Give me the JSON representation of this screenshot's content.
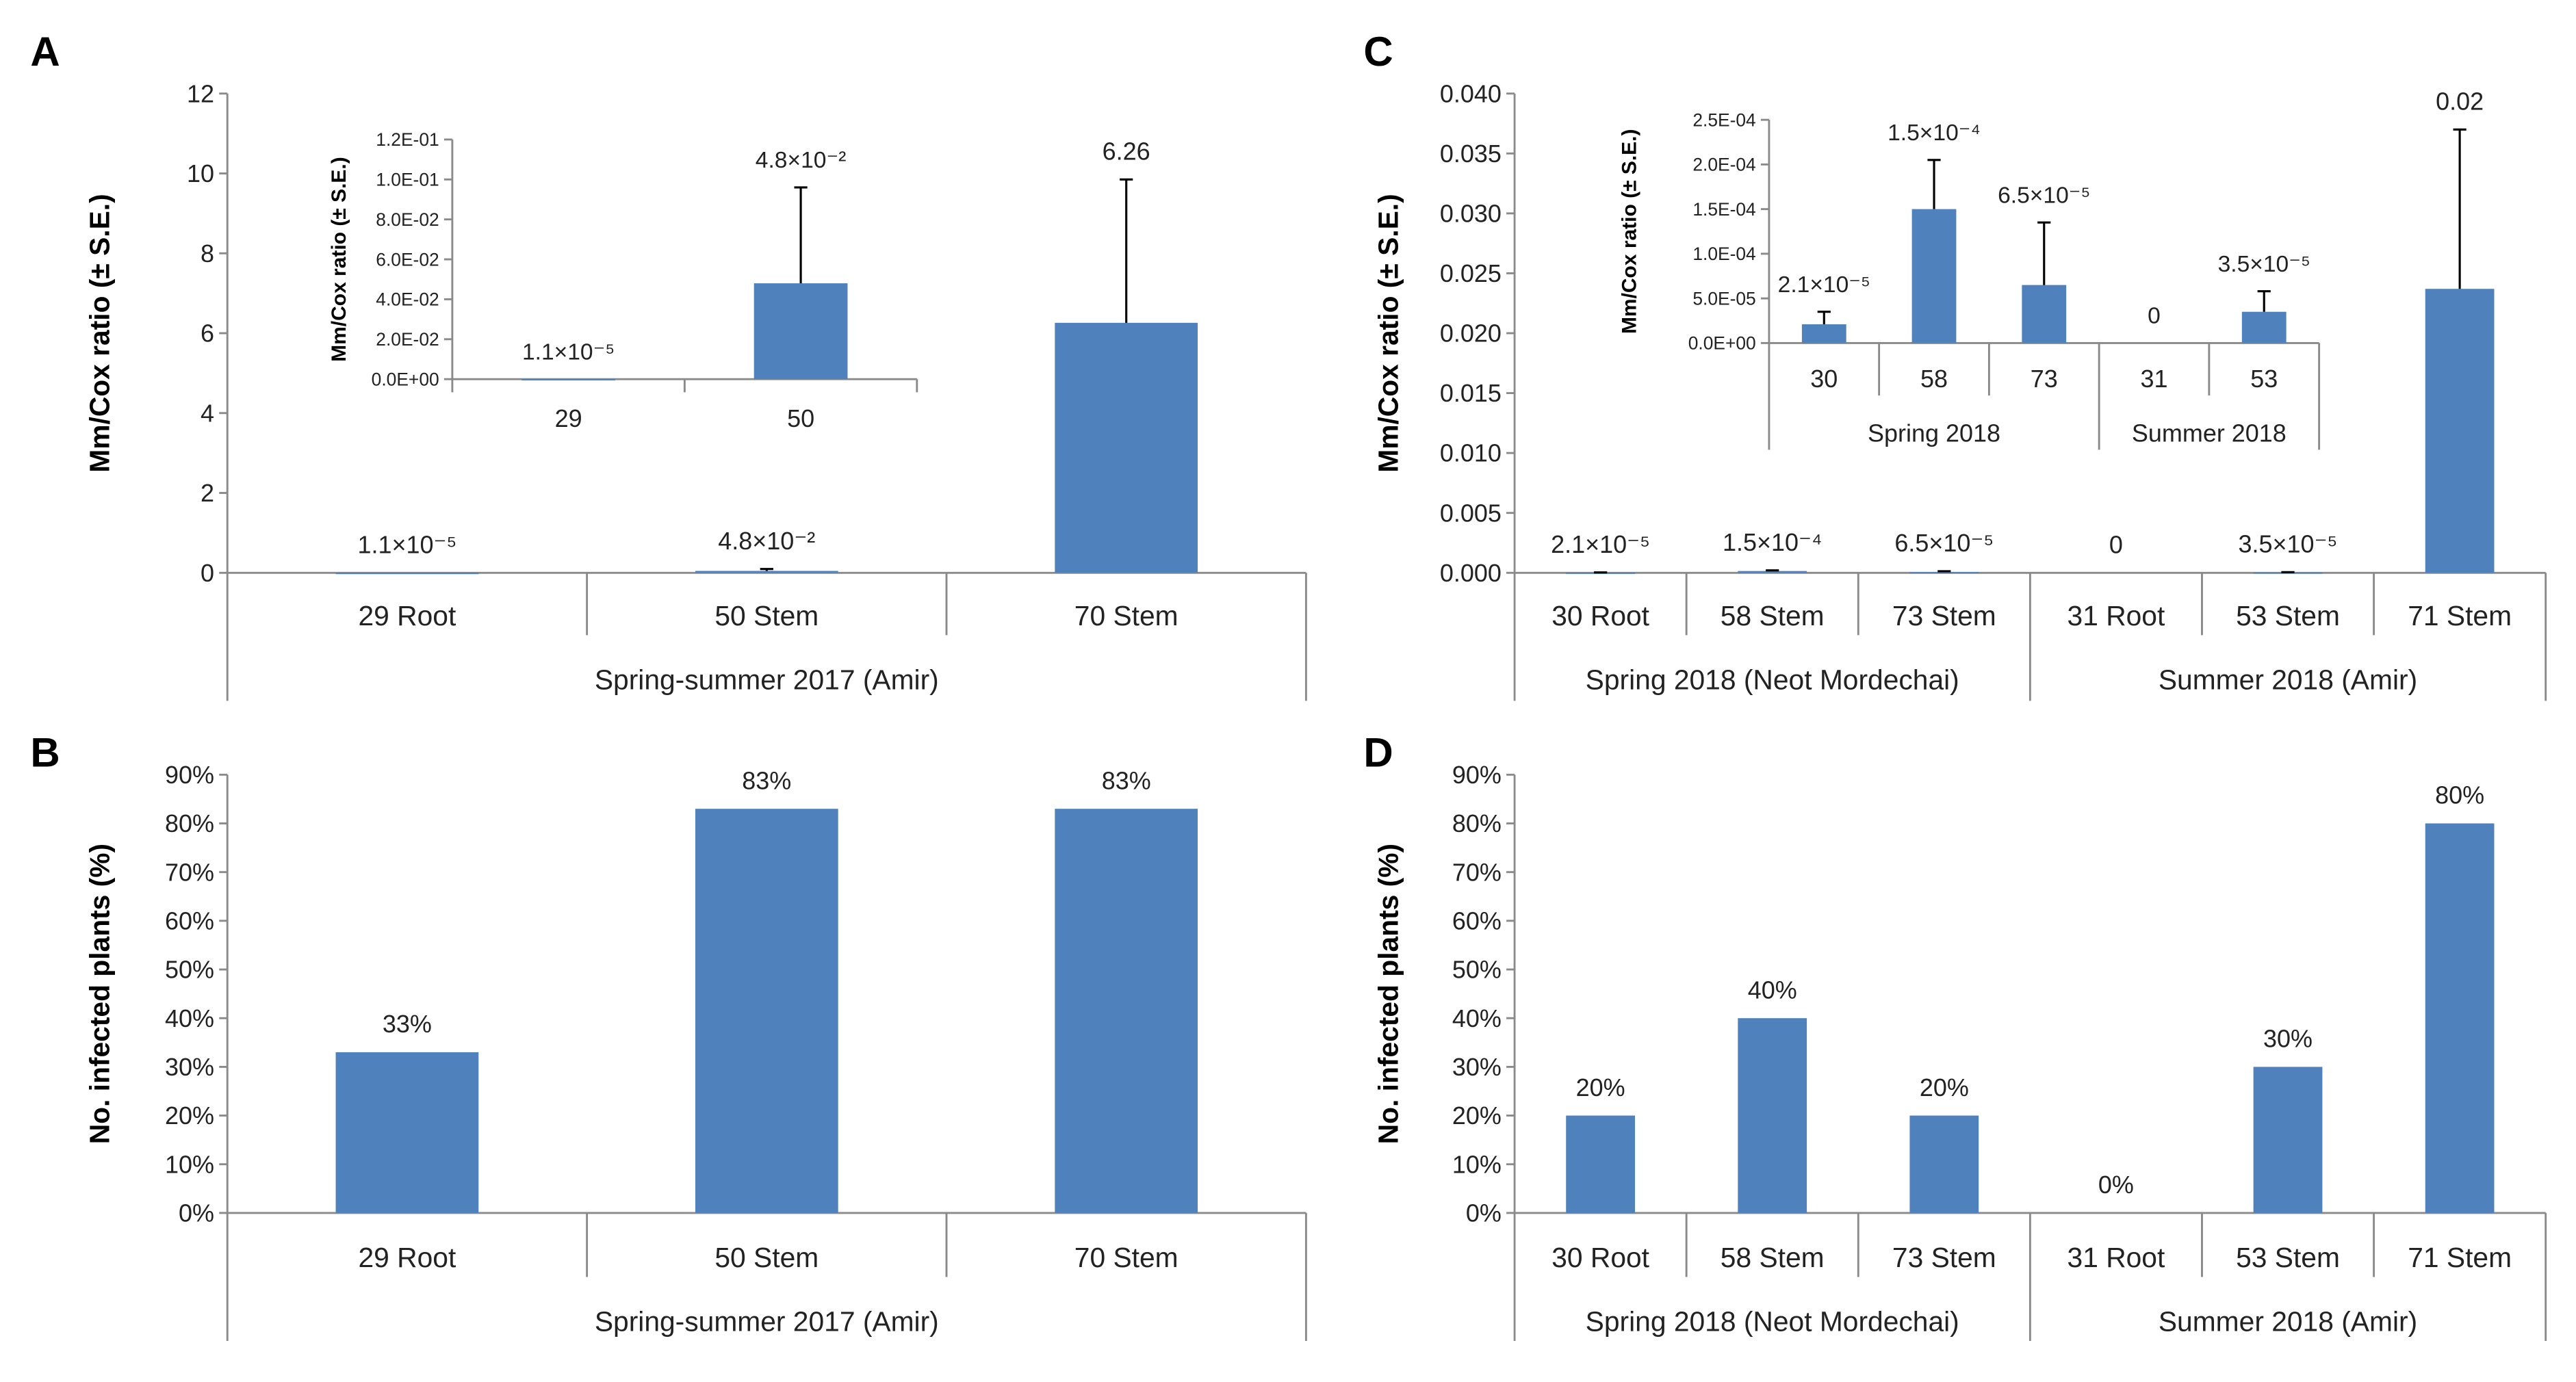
{
  "panels": {
    "A": "A",
    "B": "B",
    "C": "C",
    "D": "D"
  },
  "colors": {
    "bar": "#4F81BD",
    "axis": "#8A8A8A",
    "error_bar": "#000000"
  },
  "chart_data": [
    {
      "id": "A",
      "type": "bar",
      "title": "",
      "ylabel": "Mm/Cox ratio (± S.E.)",
      "xlabel": "",
      "ylim": [
        0,
        12
      ],
      "ytick_values": [
        0,
        2,
        4,
        6,
        8,
        10,
        12
      ],
      "ytick_labels": [
        "0",
        "2",
        "4",
        "6",
        "8",
        "10",
        "12"
      ],
      "categories": [
        "29 Root",
        "50 Stem",
        "70 Stem"
      ],
      "groups": [
        {
          "label": "Spring-summer 2017 (Amir)",
          "span": 3
        }
      ],
      "values": [
        1.1e-05,
        0.048,
        6.26
      ],
      "error_upper": [
        null,
        0.096,
        9.85
      ],
      "data_labels": [
        "1.1×10⁻⁵",
        "4.8×10⁻²",
        "6.26"
      ],
      "grid": false,
      "legend": "none"
    },
    {
      "id": "A-inset",
      "type": "bar",
      "title": "",
      "ylabel": "Mm/Cox ratio (± S.E.)",
      "xlabel": "",
      "ylim": [
        0,
        0.12
      ],
      "ytick_values": [
        0,
        0.02,
        0.04,
        0.06,
        0.08,
        0.1,
        0.12
      ],
      "ytick_labels": [
        "0.0E+00",
        "2.0E-02",
        "4.0E-02",
        "6.0E-02",
        "8.0E-02",
        "1.0E-01",
        "1.2E-01"
      ],
      "categories": [
        "29",
        "50"
      ],
      "groups": [],
      "values": [
        1.1e-05,
        0.048
      ],
      "error_upper": [
        null,
        0.096
      ],
      "data_labels": [
        "1.1×10⁻⁵",
        "4.8×10⁻²"
      ],
      "grid": false,
      "legend": "none"
    },
    {
      "id": "B",
      "type": "bar",
      "title": "",
      "ylabel": "No. infected plants (%)",
      "xlabel": "",
      "ylim": [
        0,
        90
      ],
      "ytick_values": [
        0,
        10,
        20,
        30,
        40,
        50,
        60,
        70,
        80,
        90
      ],
      "ytick_labels": [
        "0%",
        "10%",
        "20%",
        "30%",
        "40%",
        "50%",
        "60%",
        "70%",
        "80%",
        "90%"
      ],
      "categories": [
        "29 Root",
        "50 Stem",
        "70 Stem"
      ],
      "groups": [
        {
          "label": "Spring-summer 2017 (Amir)",
          "span": 3
        }
      ],
      "values": [
        33,
        83,
        83
      ],
      "error_upper": [
        null,
        null,
        null
      ],
      "data_labels": [
        "33%",
        "83%",
        "83%"
      ],
      "grid": false,
      "legend": "none"
    },
    {
      "id": "C",
      "type": "bar",
      "title": "",
      "ylabel": "Mm/Cox ratio (± S.E.)",
      "xlabel": "",
      "ylim": [
        0,
        0.04
      ],
      "ytick_values": [
        0,
        0.005,
        0.01,
        0.015,
        0.02,
        0.025,
        0.03,
        0.035,
        0.04
      ],
      "ytick_labels": [
        "0.000",
        "0.005",
        "0.010",
        "0.015",
        "0.020",
        "0.025",
        "0.030",
        "0.035",
        "0.040"
      ],
      "categories": [
        "30 Root",
        "58 Stem",
        "73 Stem",
        "31 Root",
        "53 Stem",
        "71 Stem"
      ],
      "groups": [
        {
          "label": "Spring 2018 (Neot Mordechai)",
          "span": 3
        },
        {
          "label": "Summer 2018 (Amir)",
          "span": 3
        }
      ],
      "values": [
        2.1e-05,
        0.00015,
        6.5e-05,
        0,
        3.5e-05,
        0.0237
      ],
      "error_upper": [
        3.5e-05,
        0.000205,
        0.000135,
        null,
        5.8e-05,
        0.037
      ],
      "data_labels": [
        "2.1×10⁻⁵",
        "1.5×10⁻⁴",
        "6.5×10⁻⁵",
        "0",
        "3.5×10⁻⁵",
        "0.02"
      ],
      "grid": false,
      "legend": "none"
    },
    {
      "id": "C-inset",
      "type": "bar",
      "title": "",
      "ylabel": "Mm/Cox ratio (± S.E.)",
      "xlabel": "",
      "ylim": [
        0,
        0.00025
      ],
      "ytick_values": [
        0,
        5e-05,
        0.0001,
        0.00015,
        0.0002,
        0.00025
      ],
      "ytick_labels": [
        "0.0E+00",
        "5.0E-05",
        "1.0E-04",
        "1.5E-04",
        "2.0E-04",
        "2.5E-04"
      ],
      "categories": [
        "30",
        "58",
        "73",
        "31",
        "53"
      ],
      "groups": [
        {
          "label": "Spring 2018",
          "span": 3
        },
        {
          "label": "Summer 2018",
          "span": 2
        }
      ],
      "values": [
        2.1e-05,
        0.00015,
        6.5e-05,
        0,
        3.5e-05
      ],
      "error_upper": [
        3.5e-05,
        0.000205,
        0.000135,
        null,
        5.8e-05
      ],
      "data_labels": [
        "2.1×10⁻⁵",
        "1.5×10⁻⁴",
        "6.5×10⁻⁵",
        "0",
        "3.5×10⁻⁵"
      ],
      "grid": false,
      "legend": "none"
    },
    {
      "id": "D",
      "type": "bar",
      "title": "",
      "ylabel": "No. infected plants (%)",
      "xlabel": "",
      "ylim": [
        0,
        90
      ],
      "ytick_values": [
        0,
        10,
        20,
        30,
        40,
        50,
        60,
        70,
        80,
        90
      ],
      "ytick_labels": [
        "0%",
        "10%",
        "20%",
        "30%",
        "40%",
        "50%",
        "60%",
        "70%",
        "80%",
        "90%"
      ],
      "categories": [
        "30 Root",
        "58 Stem",
        "73 Stem",
        "31 Root",
        "53 Stem",
        "71 Stem"
      ],
      "groups": [
        {
          "label": "Spring 2018 (Neot Mordechai)",
          "span": 3
        },
        {
          "label": "Summer 2018 (Amir)",
          "span": 3
        }
      ],
      "values": [
        20,
        40,
        20,
        0,
        30,
        80
      ],
      "error_upper": [
        null,
        null,
        null,
        null,
        null,
        null
      ],
      "data_labels": [
        "20%",
        "40%",
        "20%",
        "0%",
        "30%",
        "80%"
      ],
      "grid": false,
      "legend": "none"
    }
  ]
}
